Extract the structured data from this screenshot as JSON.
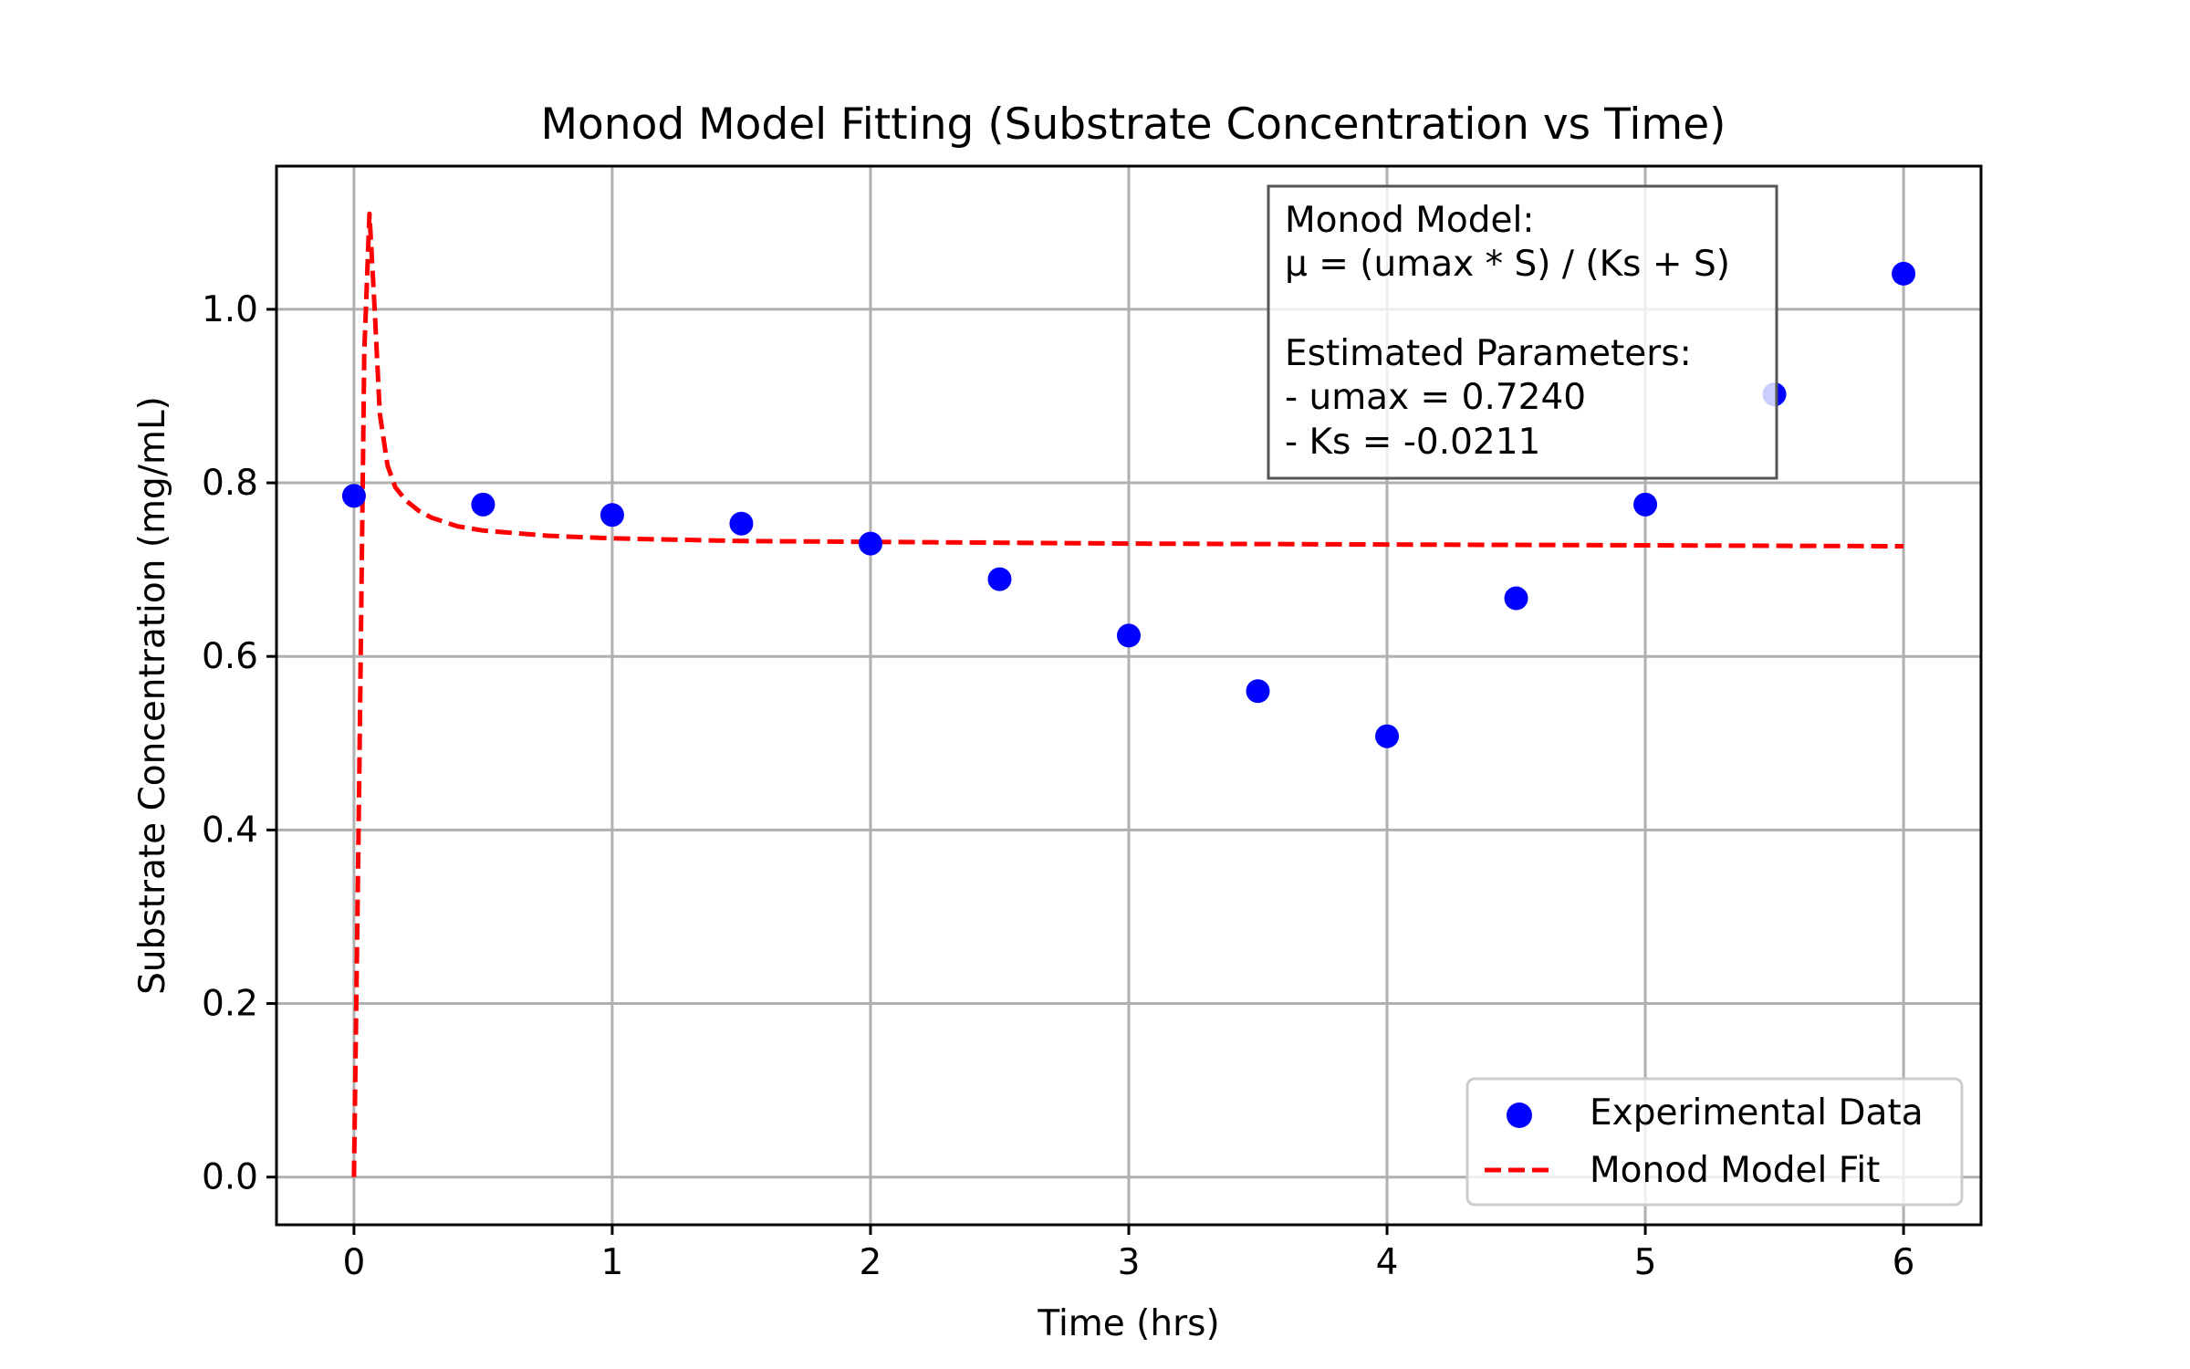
{
  "chart_data": {
    "type": "scatter",
    "title": "Monod Model Fitting (Substrate Concentration vs Time)",
    "xlabel": "Time (hrs)",
    "ylabel": "Substrate Concentration (mg/mL)",
    "xlim": [
      -0.3,
      6.3
    ],
    "ylim": [
      -0.055,
      1.165
    ],
    "xticks": [
      0,
      1,
      2,
      3,
      4,
      5,
      6
    ],
    "xtick_labels": [
      "0",
      "1",
      "2",
      "3",
      "4",
      "5",
      "6"
    ],
    "yticks": [
      0.0,
      0.2,
      0.4,
      0.6,
      0.8,
      1.0
    ],
    "ytick_labels": [
      "0.0",
      "0.2",
      "0.4",
      "0.6",
      "0.8",
      "1.0"
    ],
    "grid": true,
    "legend_position": "lower-right",
    "series": [
      {
        "name": "Experimental Data",
        "type": "scatter",
        "color": "#0000ff",
        "x": [
          0,
          0.5,
          1,
          1.5,
          2,
          2.5,
          3,
          3.5,
          4,
          4.5,
          5,
          5.5,
          6
        ],
        "y": [
          0.785,
          0.775,
          0.763,
          0.753,
          0.73,
          0.689,
          0.624,
          0.56,
          0.508,
          0.667,
          0.775,
          0.902,
          1.041
        ]
      },
      {
        "name": "Monod Model Fit",
        "type": "line",
        "style": "dashed",
        "color": "#ff0000",
        "x": [
          0,
          0.02,
          0.04,
          0.06,
          0.08,
          0.1,
          0.13,
          0.16,
          0.2,
          0.25,
          0.3,
          0.4,
          0.5,
          0.75,
          1,
          1.5,
          2,
          3,
          4,
          5,
          6
        ],
        "y": [
          0.0,
          0.45,
          0.95,
          1.11,
          1.0,
          0.88,
          0.82,
          0.795,
          0.78,
          0.768,
          0.76,
          0.75,
          0.745,
          0.739,
          0.736,
          0.733,
          0.732,
          0.73,
          0.729,
          0.728,
          0.727
        ]
      }
    ],
    "annotation": {
      "lines": [
        "Monod Model:",
        "μ = (umax * S) / (Ks + S)",
        "",
        "Estimated Parameters:",
        "- umax = 0.7240",
        "- Ks = -0.0211"
      ],
      "position": "top-right"
    }
  }
}
